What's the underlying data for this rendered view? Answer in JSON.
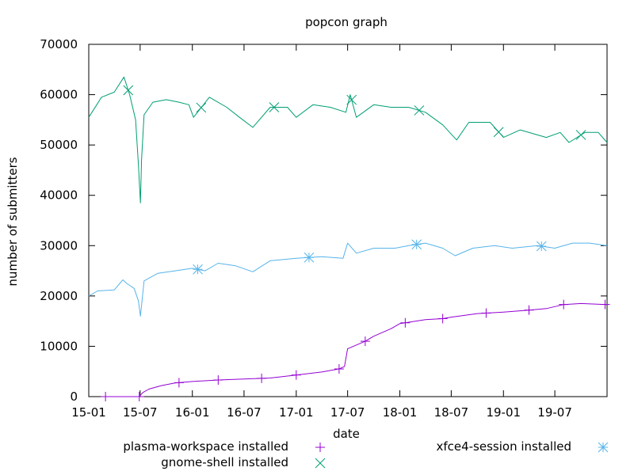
{
  "chart_data": {
    "type": "line",
    "title": "popcon graph",
    "xlabel": "date",
    "ylabel": "number of submitters",
    "x_axis_type": "date",
    "xlim": [
      "2015-01-01",
      "2020-01-01"
    ],
    "ylim": [
      0,
      70000
    ],
    "y_ticks": [
      0,
      10000,
      20000,
      30000,
      40000,
      50000,
      60000,
      70000
    ],
    "x_ticks": [
      "15-01",
      "15-07",
      "16-01",
      "16-07",
      "17-01",
      "17-07",
      "18-01",
      "18-07",
      "19-01",
      "19-07"
    ],
    "x_tick_dates": [
      "2015-01-01",
      "2015-07-01",
      "2016-01-01",
      "2016-07-01",
      "2017-01-01",
      "2017-07-01",
      "2018-01-01",
      "2018-07-01",
      "2019-01-01",
      "2019-07-01"
    ],
    "grid": false,
    "legend_position": "bottom",
    "series": [
      {
        "name": "plasma-workspace installed",
        "color": "#9400d3",
        "marker": "plus",
        "x": [
          "2015-03-01",
          "2015-06-28",
          "2015-07-01",
          "2015-07-10",
          "2015-08-01",
          "2015-09-15",
          "2015-11-01",
          "2016-01-01",
          "2016-04-01",
          "2016-07-01",
          "2016-10-01",
          "2017-01-01",
          "2017-04-01",
          "2017-06-01",
          "2017-06-20",
          "2017-07-01",
          "2017-09-01",
          "2017-10-01",
          "2017-12-01",
          "2018-01-01",
          "2018-04-01",
          "2018-06-01",
          "2018-07-01",
          "2018-10-01",
          "2019-01-01",
          "2019-04-01",
          "2019-06-01",
          "2019-08-01",
          "2019-10-01",
          "2020-01-01"
        ],
        "values": [
          0,
          0,
          200,
          800,
          1500,
          2200,
          2700,
          3000,
          3300,
          3500,
          3700,
          4300,
          4900,
          5500,
          6000,
          9500,
          11000,
          12000,
          13500,
          14500,
          15300,
          15500,
          15800,
          16500,
          16800,
          17200,
          17500,
          18300,
          18500,
          18300
        ],
        "markers": [
          "2015-03-01",
          "2015-06-28",
          "2015-11-15",
          "2016-04-01",
          "2016-09-01",
          "2017-01-01",
          "2017-06-01",
          "2017-09-01",
          "2018-01-20",
          "2018-06-01",
          "2018-11-01",
          "2019-04-01",
          "2019-08-01",
          "2019-12-25"
        ]
      },
      {
        "name": "gnome-shell installed",
        "color": "#009e73",
        "marker": "cross",
        "x": [
          "2015-01-01",
          "2015-02-15",
          "2015-04-01",
          "2015-05-05",
          "2015-05-25",
          "2015-06-15",
          "2015-06-25",
          "2015-07-02",
          "2015-07-06",
          "2015-07-15",
          "2015-08-15",
          "2015-10-01",
          "2015-11-15",
          "2015-12-20",
          "2016-01-05",
          "2016-03-01",
          "2016-05-01",
          "2016-06-15",
          "2016-08-01",
          "2016-10-01",
          "2016-12-01",
          "2017-01-01",
          "2017-03-01",
          "2017-05-01",
          "2017-06-25",
          "2017-07-10",
          "2017-08-01",
          "2017-10-01",
          "2017-12-01",
          "2018-02-01",
          "2018-04-01",
          "2018-06-01",
          "2018-07-20",
          "2018-09-01",
          "2018-11-15",
          "2019-01-01",
          "2019-03-01",
          "2019-06-01",
          "2019-07-20",
          "2019-08-20",
          "2019-10-15",
          "2019-12-01",
          "2020-01-01"
        ],
        "values": [
          55500,
          59500,
          60500,
          63500,
          60000,
          55000,
          46000,
          38500,
          47000,
          56000,
          58500,
          59000,
          58500,
          58000,
          55500,
          59500,
          57500,
          55500,
          53500,
          57500,
          57500,
          55500,
          58000,
          57500,
          56500,
          60000,
          55500,
          58000,
          57500,
          57500,
          56500,
          54000,
          51000,
          54500,
          54500,
          51500,
          53000,
          51500,
          52500,
          50500,
          52500,
          52500,
          50500
        ],
        "markers": [
          "2015-05-20",
          "2016-02-01",
          "2016-10-15",
          "2017-07-15",
          "2018-03-10",
          "2018-12-15",
          "2019-10-01"
        ]
      },
      {
        "name": "xfce4-session installed",
        "color": "#56b4e9",
        "marker": "star",
        "x": [
          "2015-01-01",
          "2015-02-01",
          "2015-04-01",
          "2015-05-01",
          "2015-05-15",
          "2015-06-10",
          "2015-06-25",
          "2015-07-02",
          "2015-07-15",
          "2015-09-01",
          "2015-11-01",
          "2016-01-01",
          "2016-02-15",
          "2016-04-01",
          "2016-06-01",
          "2016-08-01",
          "2016-10-01",
          "2017-01-01",
          "2017-04-01",
          "2017-06-15",
          "2017-07-01",
          "2017-08-01",
          "2017-10-01",
          "2017-12-15",
          "2018-02-01",
          "2018-04-01",
          "2018-06-01",
          "2018-07-15",
          "2018-09-15",
          "2018-12-01",
          "2019-02-01",
          "2019-05-01",
          "2019-07-01",
          "2019-09-01",
          "2019-11-01",
          "2020-01-01"
        ],
        "values": [
          20000,
          21000,
          21200,
          23200,
          22500,
          21500,
          19000,
          16000,
          23000,
          24500,
          25000,
          25500,
          25000,
          26500,
          26000,
          24800,
          27000,
          27500,
          27800,
          27500,
          30500,
          28500,
          29500,
          29500,
          30000,
          30500,
          29500,
          28000,
          29500,
          30000,
          29500,
          30000,
          29500,
          30500,
          30500,
          30000
        ],
        "markers": [
          "2016-01-20",
          "2017-02-15",
          "2018-03-01",
          "2019-05-15"
        ]
      }
    ]
  }
}
